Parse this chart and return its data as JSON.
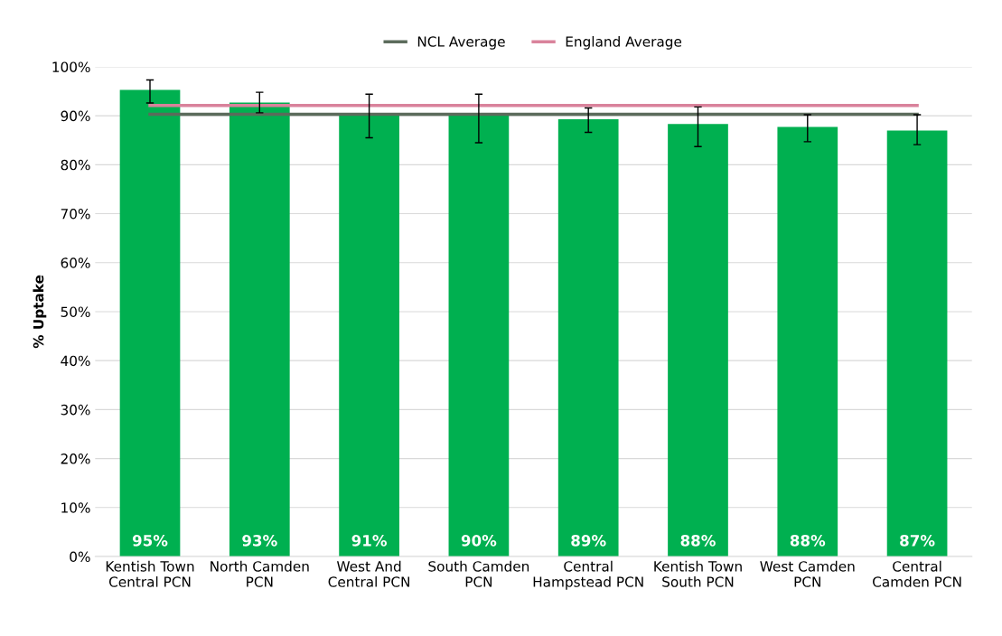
{
  "chart_data": {
    "type": "bar",
    "ylabel": "% Uptake",
    "categories": [
      "Kentish Town Central PCN",
      "North Camden PCN",
      "West And Central PCN",
      "South Camden PCN",
      "Central Hampstead PCN",
      "Kentish Town South PCN",
      "West Camden PCN",
      "Central Camden PCN"
    ],
    "series": [
      {
        "color": "#00b050",
        "values": [
          95.3,
          92.7,
          90.6,
          90.3,
          89.3,
          88.3,
          87.7,
          87.0
        ],
        "value_labels": [
          "95%",
          "93%",
          "91%",
          "90%",
          "89%",
          "88%",
          "88%",
          "87%"
        ],
        "errors": [
          [
            92.6,
            97.3
          ],
          [
            90.6,
            94.8
          ],
          [
            85.5,
            94.4
          ],
          [
            84.5,
            94.4
          ],
          [
            86.6,
            91.6
          ],
          [
            83.7,
            91.8
          ],
          [
            84.7,
            90.2
          ],
          [
            84.1,
            90.2
          ]
        ]
      },
      {
        "type": "line",
        "name": "NCL Average",
        "color": "#5b6b5b",
        "values": [
          90.3,
          90.3,
          90.3,
          90.3,
          90.3,
          90.3,
          90.3,
          90.3
        ]
      },
      {
        "type": "line",
        "name": "England Average",
        "color": "#d9829b",
        "values": [
          92.1,
          92.1,
          92.1,
          92.1,
          92.1,
          92.1,
          92.1,
          92.1
        ]
      }
    ],
    "ylim": [
      0,
      100
    ],
    "yticks": [
      {
        "value": 0,
        "label": "0%"
      },
      {
        "value": 10,
        "label": "10%"
      },
      {
        "value": 20,
        "label": "20%"
      },
      {
        "value": 30,
        "label": "30%"
      },
      {
        "value": 40,
        "label": "40%"
      },
      {
        "value": 50,
        "label": "50%"
      },
      {
        "value": 60,
        "label": "60%"
      },
      {
        "value": 70,
        "label": "70%"
      },
      {
        "value": 80,
        "label": "80%"
      },
      {
        "value": 90,
        "label": "90%"
      },
      {
        "value": 100,
        "label": "100%"
      }
    ],
    "grid": "y",
    "legend": "top"
  }
}
